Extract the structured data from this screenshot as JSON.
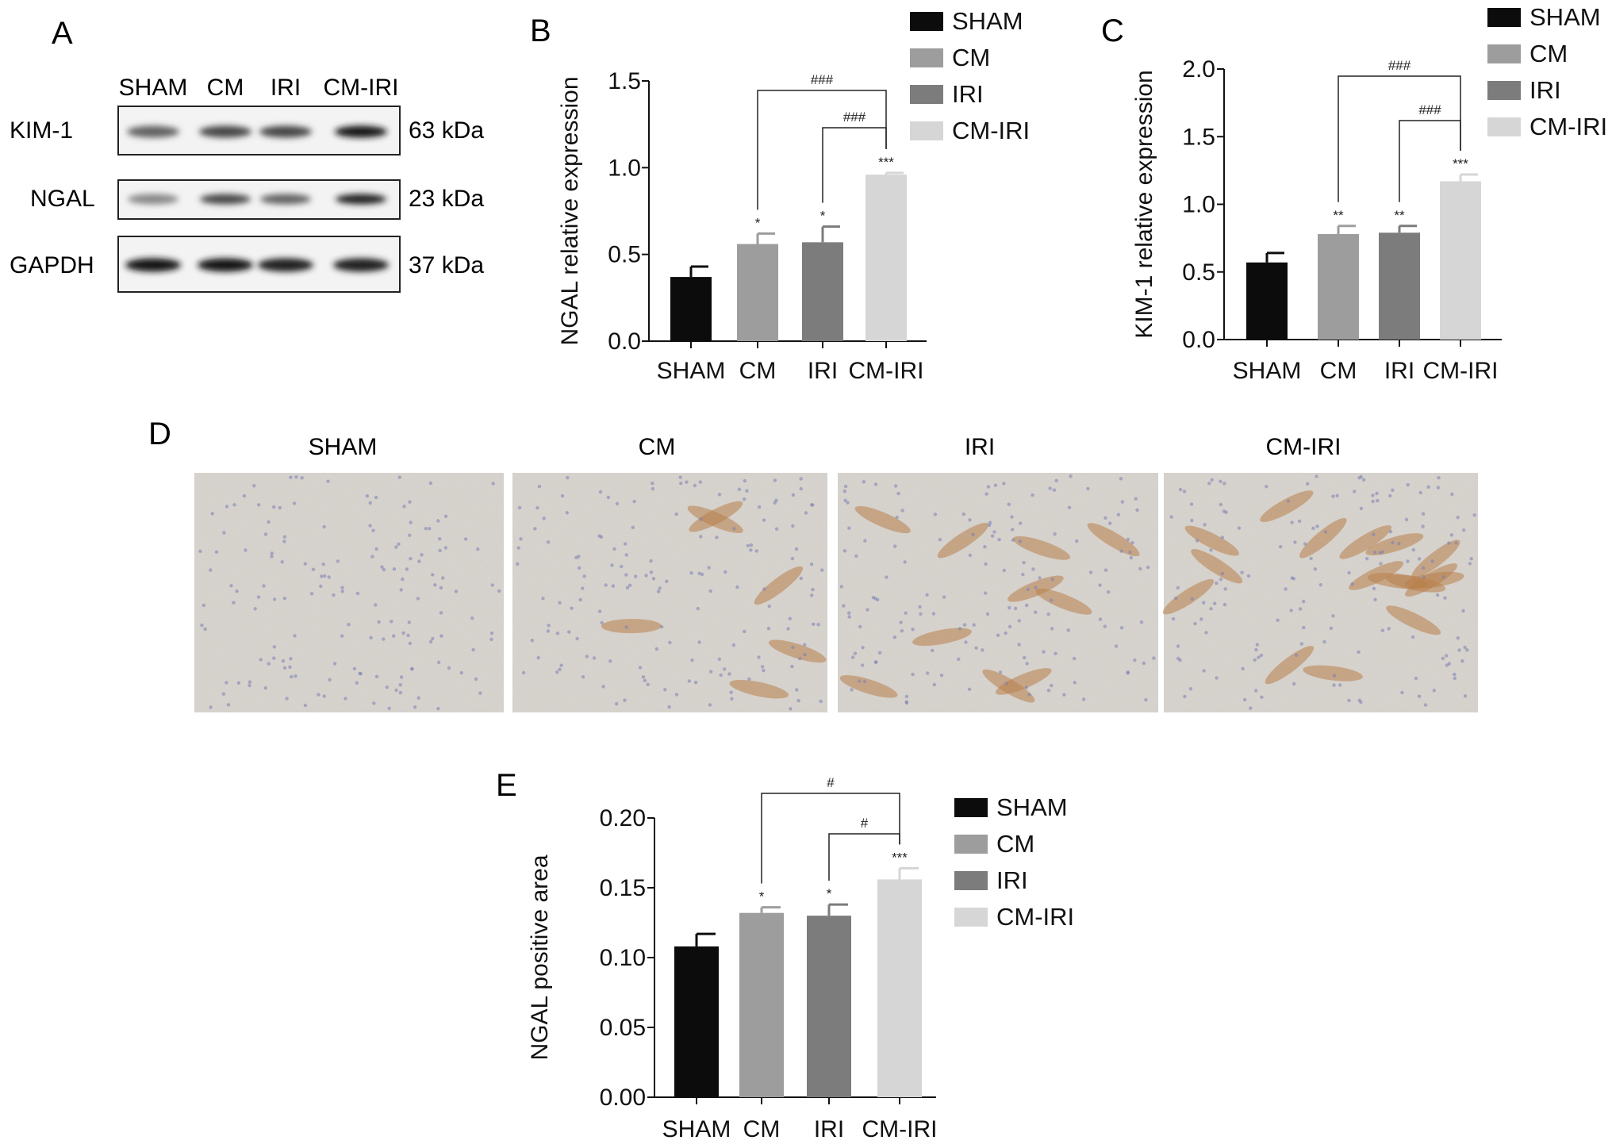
{
  "panels": {
    "a": {
      "letter": "A"
    },
    "b": {
      "letter": "B"
    },
    "c": {
      "letter": "C"
    },
    "d": {
      "letter": "D"
    },
    "e": {
      "letter": "E"
    }
  },
  "western_blot": {
    "lanes": [
      "SHAM",
      "CM",
      "IRI",
      "CM-IRI"
    ],
    "proteins": [
      {
        "name": "KIM-1",
        "size": "63 kDa",
        "intensity": [
          0.55,
          0.7,
          0.7,
          0.95
        ]
      },
      {
        "name": "NGAL",
        "size": "23 kDa",
        "intensity": [
          0.35,
          0.7,
          0.55,
          0.9
        ]
      },
      {
        "name": "GAPDH",
        "size": "37 kDa",
        "intensity": [
          0.95,
          0.95,
          0.9,
          0.9
        ]
      }
    ]
  },
  "micrographs": {
    "titles": [
      "SHAM",
      "CM",
      "IRI",
      "CM-IRI"
    ],
    "stain_colors": {
      "background": "#ddd8ce",
      "nuclei": "#7a7fb4",
      "positive": "#b8804a"
    }
  },
  "chart_data": [
    {
      "panel": "B",
      "type": "bar",
      "categories": [
        "SHAM",
        "CM",
        "IRI",
        "CM-IRI"
      ],
      "values": [
        0.37,
        0.56,
        0.57,
        0.96
      ],
      "errors": [
        0.06,
        0.06,
        0.09,
        0.01
      ],
      "colors": [
        "#0c0c0c",
        "#9d9d9d",
        "#7c7c7c",
        "#d6d6d6"
      ],
      "ylabel": "NGAL relative expression",
      "ylim": [
        0,
        1.5
      ],
      "yticks": [
        0.0,
        0.5,
        1.0,
        1.5
      ],
      "ytick_labels": [
        "0.0",
        "0.5",
        "1.0",
        "1.5"
      ],
      "significance": [
        "",
        "*",
        "*",
        "***"
      ],
      "comparisons": [
        {
          "from": "CM",
          "to": "CM-IRI",
          "label": "###"
        },
        {
          "from": "IRI",
          "to": "CM-IRI",
          "label": "###"
        }
      ],
      "legend": [
        "SHAM",
        "CM",
        "IRI",
        "CM-IRI"
      ],
      "legend_position": "top-right"
    },
    {
      "panel": "C",
      "type": "bar",
      "categories": [
        "SHAM",
        "CM",
        "IRI",
        "CM-IRI"
      ],
      "values": [
        0.57,
        0.78,
        0.79,
        1.17
      ],
      "errors": [
        0.07,
        0.06,
        0.05,
        0.05
      ],
      "colors": [
        "#0c0c0c",
        "#9d9d9d",
        "#7c7c7c",
        "#d6d6d6"
      ],
      "ylabel": "KIM-1 relative expression",
      "ylim": [
        0,
        2.0
      ],
      "yticks": [
        0.0,
        0.5,
        1.0,
        1.5,
        2.0
      ],
      "ytick_labels": [
        "0.0",
        "0.5",
        "1.0",
        "1.5",
        "2.0"
      ],
      "significance": [
        "",
        "**",
        "**",
        "***"
      ],
      "comparisons": [
        {
          "from": "CM",
          "to": "CM-IRI",
          "label": "###"
        },
        {
          "from": "IRI",
          "to": "CM-IRI",
          "label": "###"
        }
      ],
      "legend": [
        "SHAM",
        "CM",
        "IRI",
        "CM-IRI"
      ],
      "legend_position": "top-right"
    },
    {
      "panel": "E",
      "type": "bar",
      "categories": [
        "SHAM",
        "CM",
        "IRI",
        "CM-IRI"
      ],
      "values": [
        0.108,
        0.132,
        0.13,
        0.156
      ],
      "errors": [
        0.009,
        0.004,
        0.008,
        0.008
      ],
      "colors": [
        "#0c0c0c",
        "#9d9d9d",
        "#7c7c7c",
        "#d6d6d6"
      ],
      "ylabel": "NGAL positive area",
      "ylim": [
        0,
        0.2
      ],
      "yticks": [
        0.0,
        0.05,
        0.1,
        0.15,
        0.2
      ],
      "ytick_labels": [
        "0.00",
        "0.05",
        "0.10",
        "0.15",
        "0.20"
      ],
      "significance": [
        "",
        "*",
        "*",
        "***"
      ],
      "comparisons": [
        {
          "from": "CM",
          "to": "CM-IRI",
          "label": "#"
        },
        {
          "from": "IRI",
          "to": "CM-IRI",
          "label": "#"
        }
      ],
      "legend": [
        "SHAM",
        "CM",
        "IRI",
        "CM-IRI"
      ],
      "legend_position": "right"
    }
  ]
}
